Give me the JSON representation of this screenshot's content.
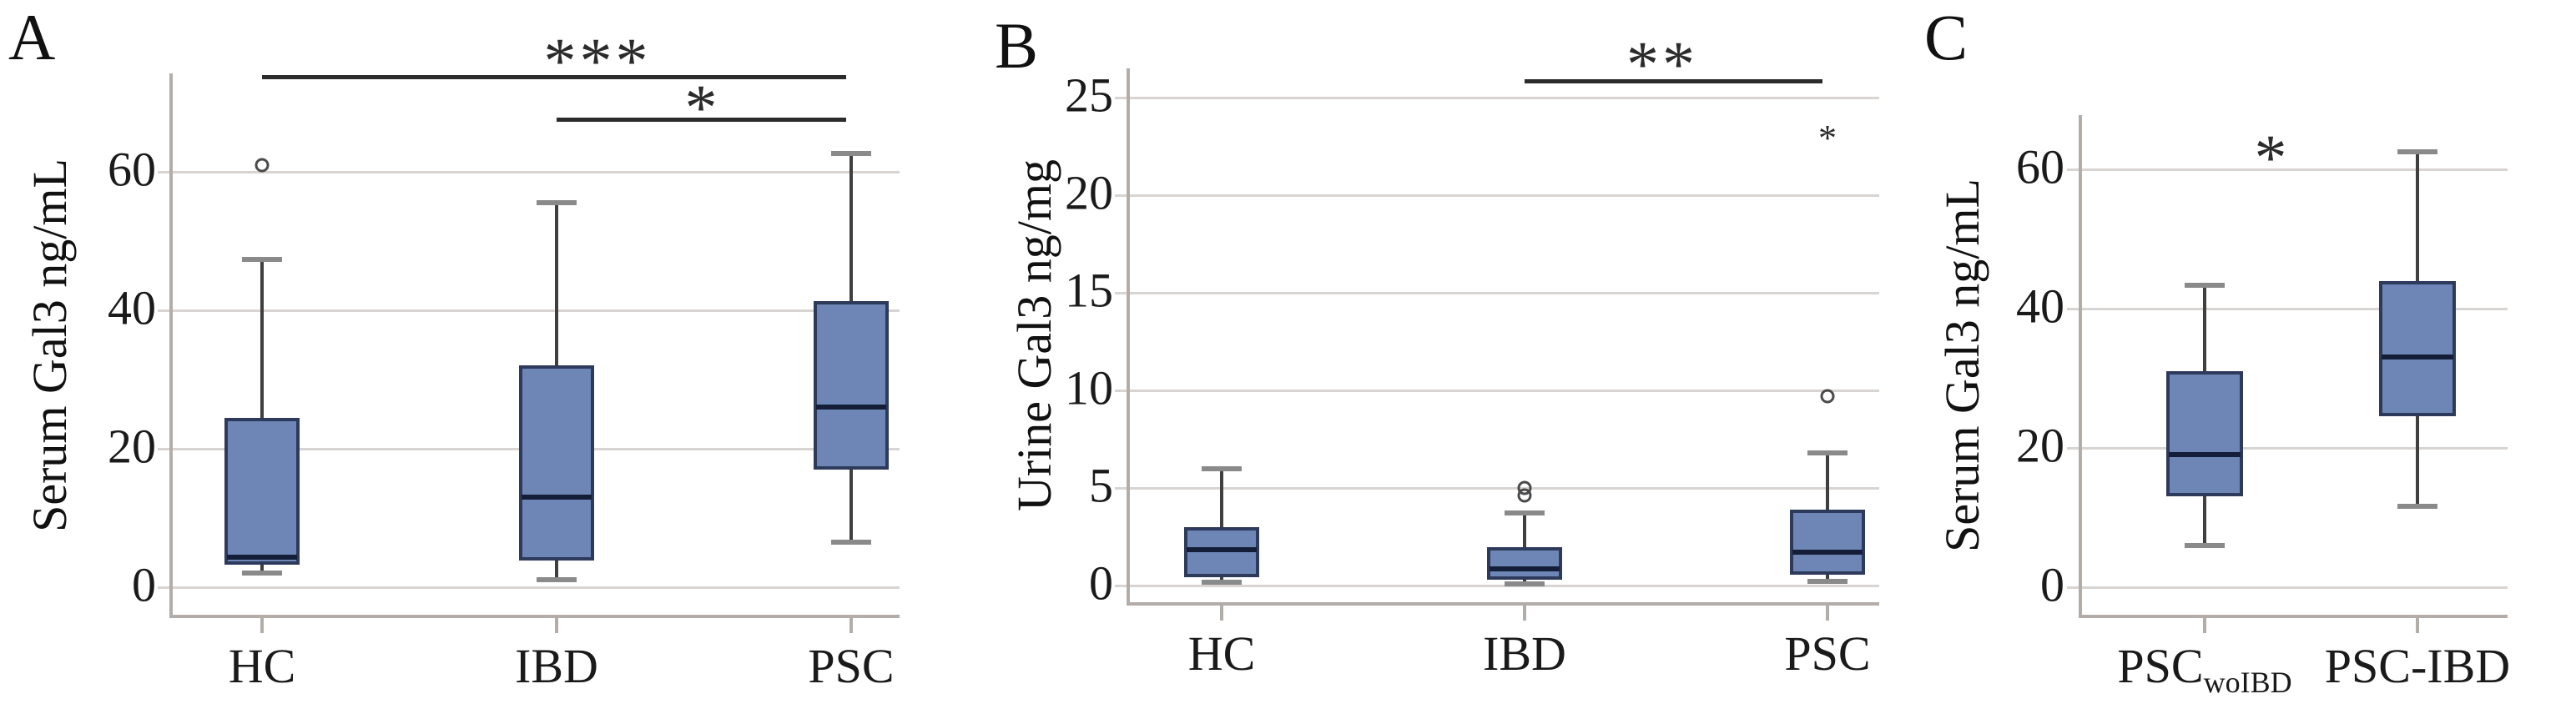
{
  "figure": {
    "description": "Three-panel box plot figure of Galectin-3 levels",
    "background": "#ffffff"
  },
  "style": {
    "box_fill": "#6d86b5",
    "box_border": "#2e3a5c",
    "median_color": "#141e38",
    "whisker_color": "#3f3f3f",
    "whisker_cap_color": "#8a8a8a",
    "outlier_color": "#4a4a4a",
    "gridline_color": "#d8d4d1",
    "axis_color": "#b3ada9",
    "sig_color": "#2b2b2b",
    "text_color": "#1a1a1a"
  },
  "chart_data": [
    {
      "type": "box",
      "panel_letter": "A",
      "ylabel": "Serum Gal3 ng/mL",
      "yticks": [
        0,
        20,
        40,
        60
      ],
      "ylim": [
        -4,
        74
      ],
      "grid": "horizontal",
      "legend": "none",
      "categories": [
        "HC",
        "IBD",
        "PSC"
      ],
      "category_labels": [
        {
          "text": "HC",
          "subscript": ""
        },
        {
          "text": "IBD",
          "subscript": ""
        },
        {
          "text": "PSC",
          "subscript": ""
        }
      ],
      "series": [
        {
          "category": "HC",
          "whisker_low": 2.0,
          "q1": 3.2,
          "median": 4.3,
          "q3": 24.5,
          "whisker_high": 47.4,
          "outliers": [
            61
          ],
          "extreme_outliers": []
        },
        {
          "category": "IBD",
          "whisker_low": 1.1,
          "q1": 3.8,
          "median": 13.0,
          "q3": 32.0,
          "whisker_high": 55.5,
          "outliers": [],
          "extreme_outliers": []
        },
        {
          "category": "PSC",
          "whisker_low": 6.5,
          "q1": 17.0,
          "median": 26.0,
          "q3": 41.3,
          "whisker_high": 62.7,
          "outliers": [],
          "extreme_outliers": []
        }
      ],
      "significance": [
        {
          "between": [
            "HC",
            "PSC"
          ],
          "label": "***",
          "bar": true
        },
        {
          "between": [
            "IBD",
            "PSC"
          ],
          "label": "*",
          "bar": true
        }
      ]
    },
    {
      "type": "box",
      "panel_letter": "B",
      "ylabel": "Urine Gal3 ng/mg",
      "yticks": [
        0,
        5,
        10,
        15,
        20,
        25
      ],
      "ylim": [
        -1,
        26.5
      ],
      "grid": "horizontal",
      "legend": "none",
      "categories": [
        "HC",
        "IBD",
        "PSC"
      ],
      "category_labels": [
        {
          "text": "HC",
          "subscript": ""
        },
        {
          "text": "IBD",
          "subscript": ""
        },
        {
          "text": "PSC",
          "subscript": ""
        }
      ],
      "series": [
        {
          "category": "HC",
          "whisker_low": 0.15,
          "q1": 0.43,
          "median": 1.85,
          "q3": 3.0,
          "whisker_high": 5.97,
          "outliers": [],
          "extreme_outliers": []
        },
        {
          "category": "IBD",
          "whisker_low": 0.1,
          "q1": 0.3,
          "median": 0.85,
          "q3": 1.95,
          "whisker_high": 3.7,
          "outliers": [
            4.6,
            5.0
          ],
          "extreme_outliers": []
        },
        {
          "category": "PSC",
          "whisker_low": 0.2,
          "q1": 0.55,
          "median": 1.7,
          "q3": 3.9,
          "whisker_high": 6.8,
          "outliers": [
            9.7
          ],
          "extreme_outliers": [
            23.2
          ]
        }
      ],
      "significance": [
        {
          "between": [
            "IBD",
            "PSC"
          ],
          "label": "**",
          "bar": true
        }
      ]
    },
    {
      "type": "box",
      "panel_letter": "C",
      "ylabel": "Serum Gal3 ng/mL",
      "yticks": [
        0,
        20,
        40,
        60
      ],
      "ylim": [
        -4,
        68
      ],
      "grid": "horizontal",
      "legend": "none",
      "categories": [
        "PSCwoIBD",
        "PSC-IBD"
      ],
      "category_labels": [
        {
          "text": "PSC",
          "subscript": "woIBD"
        },
        {
          "text": "PSC-IBD",
          "subscript": ""
        }
      ],
      "series": [
        {
          "category": "PSCwoIBD",
          "whisker_low": 6.0,
          "q1": 13.0,
          "median": 19.0,
          "q3": 31.0,
          "whisker_high": 43.4,
          "outliers": [],
          "extreme_outliers": []
        },
        {
          "category": "PSC-IBD",
          "whisker_low": 11.6,
          "q1": 24.5,
          "median": 33.0,
          "q3": 44.0,
          "whisker_high": 62.5,
          "outliers": [],
          "extreme_outliers": []
        }
      ],
      "significance": [
        {
          "between": [
            "PSCwoIBD",
            "PSC-IBD"
          ],
          "label": "*",
          "bar": false
        }
      ]
    }
  ]
}
